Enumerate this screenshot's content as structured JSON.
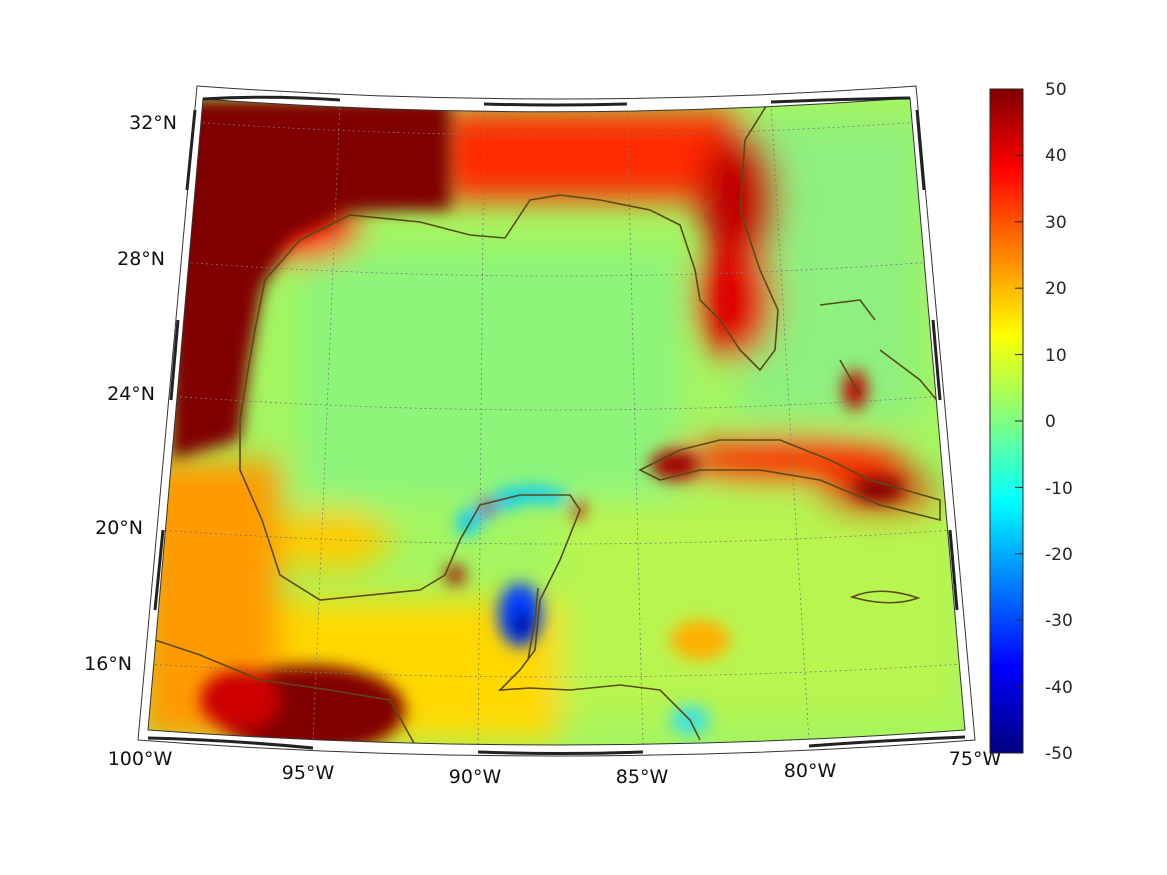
{
  "map": {
    "projection": "conic",
    "lat_labels": [
      "32°N",
      "28°N",
      "24°N",
      "20°N",
      "16°N"
    ],
    "lon_labels": [
      "100°W",
      "95°W",
      "90°W",
      "85°W",
      "80°W",
      "75°W"
    ],
    "coastline_color": "#5a4a1a"
  },
  "colorbar": {
    "colormap": "jet",
    "range": [
      -50,
      50
    ],
    "tick_labels": [
      "50",
      "40",
      "30",
      "20",
      "10",
      "0",
      "-10",
      "-20",
      "-30",
      "-40",
      "-50"
    ]
  }
}
